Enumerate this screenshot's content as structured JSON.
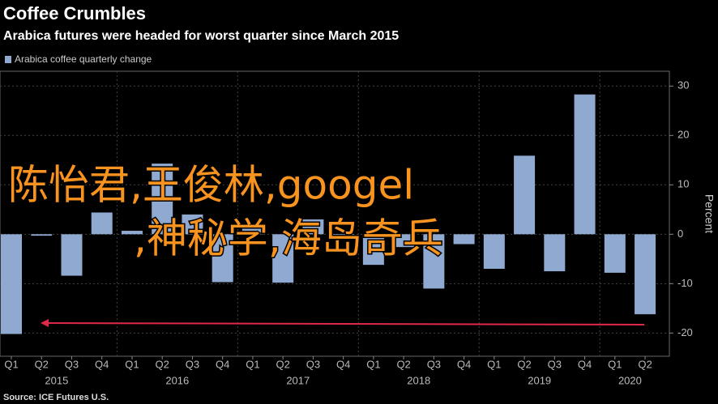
{
  "chart_data": {
    "type": "bar",
    "title": "Coffee Crumbles",
    "subtitle": "Arabica futures were headed for worst quarter since March 2015",
    "legend": "Arabica coffee quarterly change",
    "y_label": "Percent",
    "source": "Source: ICE Futures U.S.",
    "color": "#8fa9d1",
    "categories": [
      "Q1",
      "Q2",
      "Q3",
      "Q4",
      "Q1",
      "Q2",
      "Q3",
      "Q4",
      "Q1",
      "Q2",
      "Q3",
      "Q4",
      "Q1",
      "Q2",
      "Q3",
      "Q4",
      "Q1",
      "Q2",
      "Q3",
      "Q4",
      "Q1",
      "Q2"
    ],
    "years": [
      "2015",
      "2016",
      "2017",
      "2018",
      "2019",
      "2020"
    ],
    "values": [
      -20.2,
      -0.3,
      -8.4,
      4.4,
      0.7,
      14.3,
      4,
      -9.7,
      1.5,
      -9.8,
      3,
      -1,
      -6.2,
      -2.6,
      -11,
      -2,
      -7,
      15.9,
      -7.5,
      28.3,
      -7.8,
      -16.2
    ],
    "ylim": [
      -24.7,
      33
    ],
    "yticks": [
      -20,
      -10,
      0,
      10,
      20,
      30
    ],
    "grid": true,
    "overlay_text": [
      "陈怡君,王俊林,googel",
      ",神秘学,海岛奇兵"
    ]
  }
}
